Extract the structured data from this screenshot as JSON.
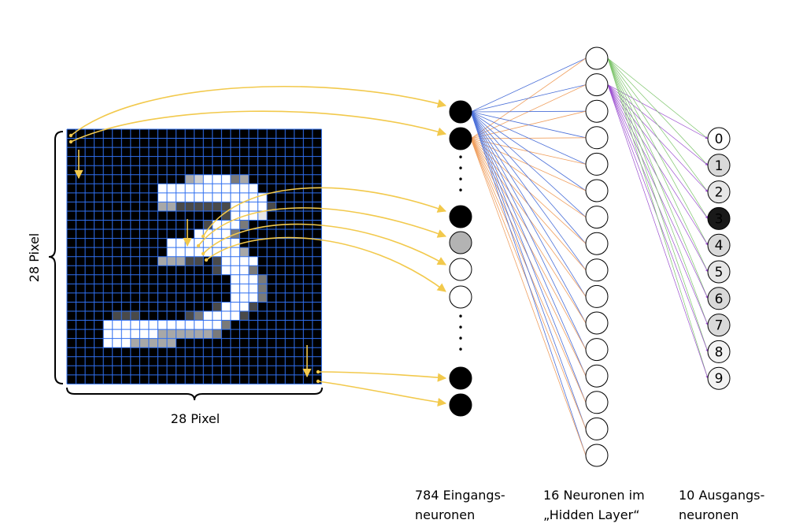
{
  "labels": {
    "pixel_side": "28 Pixel",
    "pixel_bottom": "28 Pixel",
    "input_line1": "784 Eingangs-",
    "input_line2": "neuronen",
    "hidden_line1": "16 Neuronen im",
    "hidden_line2": "„Hidden Layer“",
    "output_line1": "10 Ausgangs-",
    "output_line2": "neuronen"
  },
  "input_layer": {
    "activations": [
      1,
      1,
      1,
      0.3,
      0,
      0,
      1,
      1
    ],
    "ellipsis": "•"
  },
  "hidden_layer": {
    "count": 16
  },
  "output_layer": {
    "digits": [
      "0",
      "1",
      "2",
      "3",
      "4",
      "5",
      "6",
      "7",
      "8",
      "9"
    ],
    "activations": [
      0,
      0.15,
      0.1,
      0.9,
      0.15,
      0.1,
      0.15,
      0.15,
      0.05,
      0.05
    ]
  },
  "image": {
    "size": 28,
    "rows": [
      "............................",
      "............................",
      "............................",
      "............................",
      "............................",
      ".............cdfffbc........",
      "..........fffffffffff.......",
      "..........ffffffffffff......",
      "..........ccaaaaaaffffa.....",
      ".................afffe......",
      "...............afffb.......",
      "..............ffffb.........",
      "...........ffffffff.........",
      "...........ffffffffc........",
      "..........cccaa.affff.......",
      "................afffb.......",
      "..................fffb......",
      "..................fffb......",
      "..................fffb......",
      "................afffa.......",
      ".....aaa.....abffffa........",
      "....fffffffffffffb..........",
      "....ffffffccccccb...........",
      "....fffccccc................",
      "............................",
      "............................",
      "............................",
      "............................"
    ]
  },
  "colors": {
    "background": "#000000",
    "grid": "#2f6ff0",
    "arrow": "#f2c94c",
    "edge_blue": "#4a6fd8",
    "edge_orange": "#f0a060",
    "edge_green": "#7cc46a",
    "edge_purple": "#9b4fd0"
  }
}
